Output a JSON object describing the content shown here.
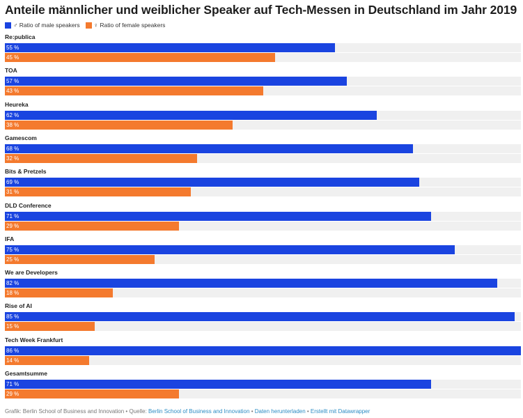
{
  "chart_data": {
    "type": "bar",
    "orientation": "horizontal-grouped",
    "title": "Anteile männlicher und weiblicher Speaker auf Tech-Messen in Deutschland im Jahr 2019",
    "categories": [
      "Re:publica",
      "TOA",
      "Heureka",
      "Gamescom",
      "Bits & Pretzels",
      "DLD Conference",
      "IFA",
      "We are Developers",
      "Rise of AI",
      "Tech Week Frankfurt",
      "Gesamtsumme"
    ],
    "series": [
      {
        "name": "♂ Ratio of male speakers",
        "color": "#1a44e0",
        "values": [
          55,
          57,
          62,
          68,
          69,
          71,
          75,
          82,
          85,
          86,
          71
        ]
      },
      {
        "name": "♀ Ratio of female speakers",
        "color": "#f47a2e",
        "values": [
          45,
          43,
          38,
          32,
          31,
          29,
          25,
          18,
          15,
          14,
          29
        ]
      }
    ],
    "value_suffix": " %",
    "xlim": [
      0,
      86
    ],
    "background_track_color": "#f0f0f0"
  },
  "footer": {
    "credit": "Grafik: Berlin School of Business and Innovation • Quelle: ",
    "source_link": "Berlin School of Business and Innovation",
    "sep1": " • ",
    "download_link": "Daten herunterladen",
    "sep2": " • ",
    "made_with_link": "Erstellt mit Datawrapper"
  }
}
